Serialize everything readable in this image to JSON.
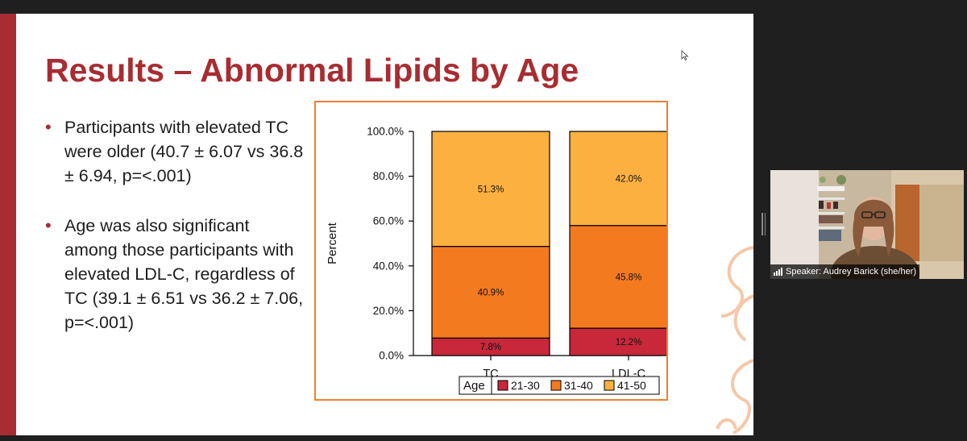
{
  "slide": {
    "title": "Results – Abnormal Lipids by Age",
    "bullets": [
      {
        "marker": "•",
        "text": "Participants with elevated TC were older (40.7 ±  6.07 vs 36.8 ± 6.94, p=<.001)"
      },
      {
        "marker": "•",
        "text": "Age was also significant among those participants with elevated LDL-C, regardless of TC (39.1 ± 6.51 vs 36.2 ± 7.06, p=<.001)"
      }
    ],
    "accent_color": "#a82c31"
  },
  "chart_data": {
    "type": "bar",
    "stacked": true,
    "categories": [
      "TC",
      "LDL-C"
    ],
    "series": [
      {
        "name": "21-30",
        "values": [
          7.8,
          12.2
        ],
        "labels": [
          "7.8%",
          "12.2%"
        ],
        "color": "#c8283a"
      },
      {
        "name": "31-40",
        "values": [
          40.9,
          45.8
        ],
        "labels": [
          "40.9%",
          "45.8%"
        ],
        "color": "#f47a20"
      },
      {
        "name": "41-50",
        "values": [
          51.3,
          42.0
        ],
        "labels": [
          "51.3%",
          "42.0%"
        ],
        "color": "#fbb040"
      }
    ],
    "ylabel": "Percent",
    "ylim": [
      0,
      100
    ],
    "yticks": [
      "0.0%",
      "20.0%",
      "40.0%",
      "60.0%",
      "80.0%",
      "100.0%"
    ],
    "legend": {
      "title": "Age",
      "placement": "bottom"
    },
    "frame_color": "#f08030"
  },
  "video": {
    "speaker_label": "Speaker: Audrey Barick (she/her)"
  },
  "icons": {
    "cursor": "mouse-pointer-icon",
    "signal": "signal-bars-icon"
  }
}
